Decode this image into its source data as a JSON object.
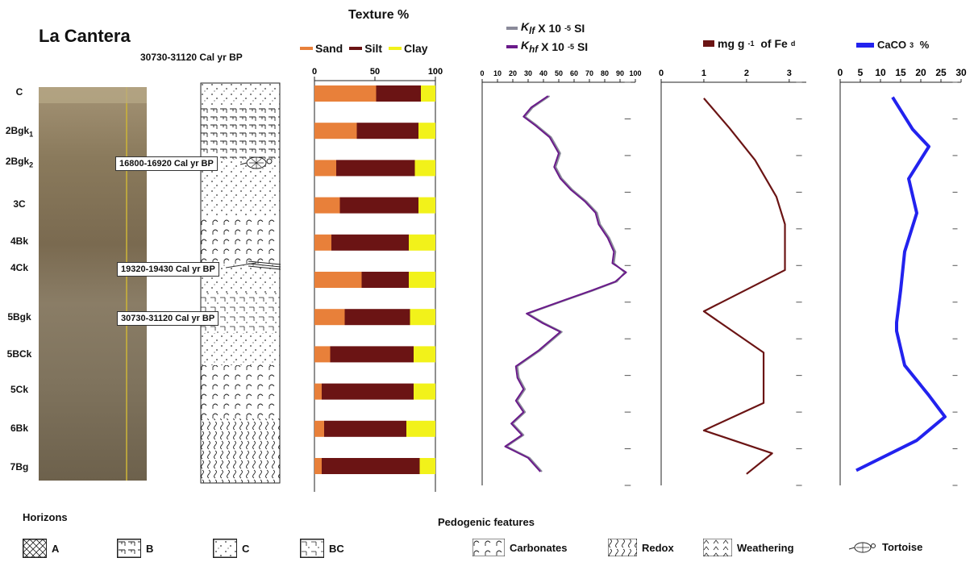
{
  "site_title": "La Cantera",
  "site_subtitle": "30730-31120 Cal yr BP",
  "horizons": [
    "C",
    "2Bgk1",
    "2Bgk2",
    "3C",
    "4Bk",
    "4Ck",
    "5Bgk",
    "5BCk",
    "5Ck",
    "6Bk",
    "7Bg"
  ],
  "horizon_labels": [
    {
      "main": "C",
      "sub": ""
    },
    {
      "main": "2Bgk",
      "sub": "1"
    },
    {
      "main": "2Bgk",
      "sub": "2"
    },
    {
      "main": "3C",
      "sub": ""
    },
    {
      "main": "4Bk",
      "sub": ""
    },
    {
      "main": "4Ck",
      "sub": ""
    },
    {
      "main": "5Bgk",
      "sub": ""
    },
    {
      "main": "5BCk",
      "sub": ""
    },
    {
      "main": "5Ck",
      "sub": ""
    },
    {
      "main": "6Bk",
      "sub": ""
    },
    {
      "main": "7Bg",
      "sub": ""
    }
  ],
  "dates": [
    "16800-16920 Cal yr BP",
    "19320-19430 Cal yr BP",
    "30730-31120 Cal yr BP"
  ],
  "colors": {
    "sand": "#e8803a",
    "silt": "#6b1414",
    "clay": "#f2f21a",
    "klf": "#8a8a9a",
    "khf": "#6a1a8a",
    "fed": "#6b1414",
    "caco3": "#2222ee"
  },
  "legend": {
    "horizons_title": "Horizons",
    "horizons": [
      "A",
      "B",
      "C",
      "BC"
    ],
    "pedogenic_title": "Pedogenic features",
    "pedogenic": [
      "Carbonates",
      "Redox",
      "Weathering",
      "Tortoise"
    ]
  },
  "chart_data": [
    {
      "type": "bar",
      "title": "Texture %",
      "stacked": true,
      "orientation": "horizontal",
      "categories": [
        "C",
        "2Bgk1",
        "2Bgk2",
        "3C",
        "4Bk",
        "4Ck",
        "5Bgk",
        "5BCk",
        "5Ck",
        "6Bk",
        "7Bg"
      ],
      "xlim": [
        0,
        100
      ],
      "xticks": [
        0,
        50,
        100
      ],
      "series": [
        {
          "name": "Sand",
          "values": [
            51,
            35,
            18,
            21,
            14,
            39,
            25,
            13,
            6,
            8,
            6
          ]
        },
        {
          "name": "Silt",
          "values": [
            37,
            51,
            65,
            65,
            64,
            39,
            54,
            69,
            76,
            68,
            81
          ]
        },
        {
          "name": "Clay",
          "values": [
            12,
            14,
            17,
            14,
            22,
            22,
            21,
            18,
            18,
            24,
            13
          ]
        }
      ]
    },
    {
      "type": "line",
      "legend": [
        "K",
        "K"
      ],
      "legend_subscripts": [
        "lf",
        "hf"
      ],
      "legend_suffix": " X 10",
      "legend_exponent": "-5",
      "legend_unit": "SI",
      "xlim": [
        0,
        100
      ],
      "xticks": [
        0,
        10,
        20,
        30,
        40,
        50,
        60,
        70,
        80,
        90,
        100
      ],
      "series": [
        {
          "name": "Klf",
          "x": [
            44,
            33,
            28,
            36,
            45,
            51,
            48,
            52,
            59,
            68,
            75,
            77,
            83,
            87,
            86,
            93,
            88,
            72,
            55,
            30,
            40,
            52,
            38,
            23,
            24,
            28,
            23,
            28,
            20,
            27,
            16,
            31,
            39
          ],
          "y": [
            0.3,
            0.55,
            0.75,
            0.95,
            1.2,
            1.55,
            1.85,
            2.1,
            2.35,
            2.6,
            2.85,
            3.1,
            3.4,
            3.7,
            3.95,
            4.15,
            4.35,
            4.55,
            4.75,
            5.05,
            5.25,
            5.45,
            5.85,
            6.2,
            6.45,
            6.7,
            6.95,
            7.2,
            7.45,
            7.7,
            7.95,
            8.2,
            8.5
          ]
        },
        {
          "name": "Khf",
          "x": [
            43,
            32,
            27,
            35,
            44,
            50,
            47,
            51,
            58,
            67,
            74,
            76,
            82,
            86,
            85,
            94,
            87,
            71,
            54,
            29,
            39,
            51,
            37,
            22,
            23,
            27,
            22,
            27,
            19,
            26,
            15,
            30,
            38
          ],
          "y": [
            0.3,
            0.55,
            0.75,
            0.95,
            1.2,
            1.55,
            1.85,
            2.1,
            2.35,
            2.6,
            2.85,
            3.1,
            3.4,
            3.7,
            3.95,
            4.15,
            4.35,
            4.55,
            4.75,
            5.05,
            5.25,
            5.45,
            5.85,
            6.2,
            6.45,
            6.7,
            6.95,
            7.2,
            7.45,
            7.7,
            7.95,
            8.2,
            8.5
          ]
        }
      ]
    },
    {
      "type": "line",
      "legend": "mg g",
      "legend_exponent": "-1",
      "legend_tail": " of Fe",
      "legend_subscript": "d",
      "xlim": [
        0,
        3.4
      ],
      "xticks": [
        0,
        1,
        2,
        3
      ],
      "series": [
        {
          "name": "Fed",
          "x": [
            1.0,
            1.6,
            2.2,
            2.7,
            2.9,
            2.9,
            2.9,
            2.9,
            1.0,
            2.4,
            2.4,
            2.4,
            1.0,
            2.6,
            2.0
          ],
          "y": [
            0.35,
            1.0,
            1.7,
            2.5,
            3.1,
            3.6,
            4.05,
            4.1,
            5.0,
            5.9,
            6.4,
            7.0,
            7.6,
            8.1,
            8.55
          ]
        }
      ]
    },
    {
      "type": "line",
      "legend": "CaCO",
      "legend_subscript": "3",
      "legend_tail": " %",
      "xlim": [
        0,
        30
      ],
      "xticks": [
        0,
        5,
        10,
        15,
        20,
        25,
        30
      ],
      "series": [
        {
          "name": "CaCO3",
          "x": [
            13,
            18,
            22,
            17,
            19,
            16,
            15,
            14,
            14,
            16,
            22,
            26,
            19,
            4
          ],
          "y": [
            0.35,
            1.1,
            1.5,
            2.25,
            3.05,
            3.95,
            4.85,
            5.6,
            5.8,
            6.6,
            7.3,
            7.8,
            8.35,
            9.05
          ]
        }
      ]
    }
  ]
}
